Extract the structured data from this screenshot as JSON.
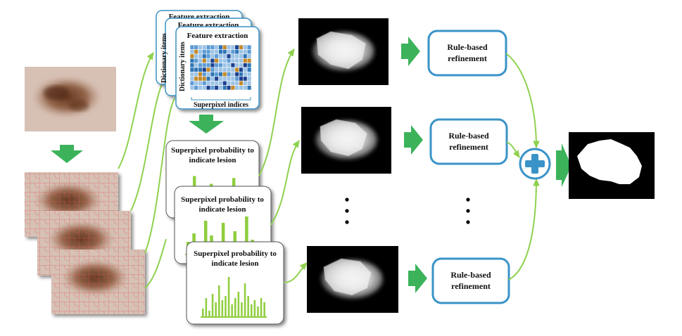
{
  "feature_extraction": {
    "title": "Feature extraction",
    "rows_label": "Dictionary items",
    "cols_label": "Superpixel indices"
  },
  "probability_panels": [
    {
      "title_line1": "Superpixel probability to",
      "title_line2": "indicate lesion",
      "values": [
        0.25,
        0.55,
        0.3,
        0.9,
        0.4,
        0.2,
        0.7,
        0.35,
        0.5,
        0.25,
        0.85,
        0.4,
        0.3
      ]
    },
    {
      "title_line1": "Superpixel probability to",
      "title_line2": "indicate lesion",
      "values": [
        0.3,
        0.5,
        0.25,
        0.8,
        0.45,
        0.2,
        0.75,
        0.3,
        0.55,
        0.2,
        0.9,
        0.35,
        0.3
      ]
    },
    {
      "title_line1": "Superpixel probability to",
      "title_line2": "indicate lesion",
      "values": [
        0.2,
        0.45,
        0.15,
        0.55,
        0.35,
        0.75,
        0.4,
        0.5,
        0.95,
        0.3,
        0.45,
        0.6,
        0.35,
        0.8,
        0.5,
        0.3,
        0.4,
        0.25,
        0.45,
        0.35
      ]
    }
  ],
  "refinement": [
    {
      "line1": "Rule-based",
      "line2": "refinement"
    },
    {
      "line1": "Rule-based",
      "line2": "refinement"
    },
    {
      "line1": "Rule-based",
      "line2": "refinement"
    }
  ],
  "colors": {
    "arrow_green": "#3cb35a",
    "connector_green": "#8fd14f",
    "bar_green": "#8fce3c",
    "box_blue": "#3a93c8",
    "grid_blue": "#5b9bd5",
    "skin": "#d7c1b5",
    "lesion": "#6b3a1e",
    "superpixel_line": "#e05a5a"
  },
  "icons": {
    "plus": "plus-icon",
    "ellipsis": "vertical-ellipsis-icon"
  }
}
